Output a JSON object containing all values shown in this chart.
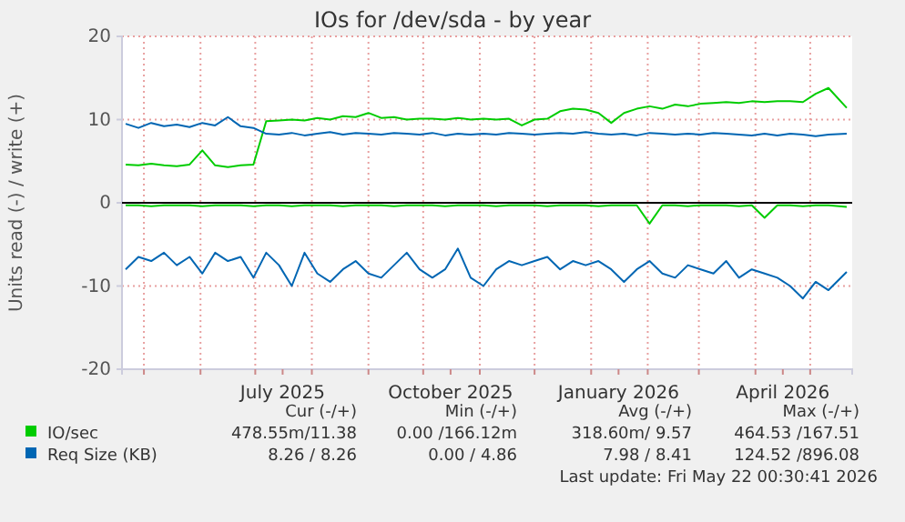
{
  "chart_data": {
    "type": "line",
    "title": "IOs for /dev/sda - by year",
    "ylabel": "Units read (-) / write (+)",
    "x": [
      "2025-04-21",
      "2025-04-28",
      "2025-05-05",
      "2025-05-12",
      "2025-05-19",
      "2025-05-26",
      "2025-06-02",
      "2025-06-09",
      "2025-06-16",
      "2025-06-23",
      "2025-06-30",
      "2025-07-07",
      "2025-07-14",
      "2025-07-21",
      "2025-07-28",
      "2025-08-04",
      "2025-08-11",
      "2025-08-18",
      "2025-08-25",
      "2025-09-01",
      "2025-09-08",
      "2025-09-15",
      "2025-09-22",
      "2025-09-29",
      "2025-10-06",
      "2025-10-13",
      "2025-10-20",
      "2025-10-27",
      "2025-11-03",
      "2025-11-10",
      "2025-11-17",
      "2025-11-24",
      "2025-12-01",
      "2025-12-08",
      "2025-12-15",
      "2025-12-22",
      "2025-12-29",
      "2026-01-05",
      "2026-01-12",
      "2026-01-19",
      "2026-01-26",
      "2026-02-02",
      "2026-02-09",
      "2026-02-16",
      "2026-02-23",
      "2026-03-02",
      "2026-03-09",
      "2026-03-16",
      "2026-03-23",
      "2026-03-30",
      "2026-04-06",
      "2026-04-13",
      "2026-04-20",
      "2026-04-27",
      "2026-05-04",
      "2026-05-11",
      "2026-05-21"
    ],
    "series": [
      {
        "name": "IO/sec",
        "color": "#00cc00",
        "values": [
          4.6,
          4.5,
          4.7,
          4.5,
          4.4,
          4.6,
          6.3,
          4.5,
          4.3,
          4.5,
          4.6,
          9.8,
          9.9,
          10.0,
          9.9,
          10.2,
          10.0,
          10.4,
          10.3,
          10.8,
          10.2,
          10.3,
          10.0,
          10.1,
          10.1,
          10.0,
          10.2,
          10.0,
          10.1,
          10.0,
          10.1,
          9.3,
          10.0,
          10.1,
          11.0,
          11.3,
          11.2,
          10.8,
          9.6,
          10.8,
          11.3,
          11.6,
          11.3,
          11.8,
          11.6,
          11.9,
          12.0,
          12.1,
          12.0,
          12.2,
          12.1,
          12.2,
          12.2,
          12.1,
          13.1,
          13.8,
          11.4
        ]
      },
      {
        "color": "#00cc00",
        "values": [
          -0.3,
          -0.3,
          -0.4,
          -0.3,
          -0.3,
          -0.3,
          -0.4,
          -0.3,
          -0.3,
          -0.3,
          -0.4,
          -0.3,
          -0.3,
          -0.4,
          -0.3,
          -0.3,
          -0.3,
          -0.4,
          -0.3,
          -0.3,
          -0.3,
          -0.4,
          -0.3,
          -0.3,
          -0.3,
          -0.4,
          -0.3,
          -0.3,
          -0.3,
          -0.4,
          -0.3,
          -0.3,
          -0.3,
          -0.4,
          -0.3,
          -0.3,
          -0.3,
          -0.4,
          -0.3,
          -0.3,
          -0.3,
          -2.5,
          -0.3,
          -0.3,
          -0.4,
          -0.3,
          -0.3,
          -0.3,
          -0.4,
          -0.3,
          -1.8,
          -0.3,
          -0.3,
          -0.4,
          -0.3,
          -0.3,
          -0.5
        ]
      },
      {
        "name": "Req Size (KB)",
        "color": "#0066b3",
        "values": [
          9.5,
          9.0,
          9.6,
          9.2,
          9.4,
          9.1,
          9.6,
          9.3,
          10.3,
          9.2,
          9.0,
          8.3,
          8.2,
          8.4,
          8.1,
          8.3,
          8.5,
          8.2,
          8.4,
          8.3,
          8.2,
          8.4,
          8.3,
          8.2,
          8.4,
          8.1,
          8.3,
          8.2,
          8.3,
          8.2,
          8.4,
          8.3,
          8.2,
          8.3,
          8.4,
          8.3,
          8.5,
          8.3,
          8.2,
          8.3,
          8.1,
          8.4,
          8.3,
          8.2,
          8.3,
          8.2,
          8.4,
          8.3,
          8.2,
          8.1,
          8.3,
          8.1,
          8.3,
          8.2,
          8.0,
          8.2,
          8.3
        ]
      },
      {
        "color": "#0066b3",
        "values": [
          -8.0,
          -6.5,
          -7.0,
          -6.0,
          -7.5,
          -6.5,
          -8.5,
          -6.0,
          -7.0,
          -6.5,
          -9.0,
          -6.0,
          -7.5,
          -10.0,
          -6.0,
          -8.5,
          -9.5,
          -8.0,
          -7.0,
          -8.5,
          -9.0,
          -7.5,
          -6.0,
          -8.0,
          -9.0,
          -8.0,
          -5.5,
          -9.0,
          -10.0,
          -8.0,
          -7.0,
          -7.5,
          -7.0,
          -6.5,
          -8.0,
          -7.0,
          -7.5,
          -7.0,
          -8.0,
          -9.5,
          -8.0,
          -7.0,
          -8.5,
          -9.0,
          -7.5,
          -8.0,
          -8.5,
          -7.0,
          -9.0,
          -8.0,
          -8.5,
          -9.0,
          -10.0,
          -11.5,
          -9.5,
          -10.5,
          -8.3
        ]
      }
    ],
    "xlim": [
      "2025-04-19",
      "2026-05-24"
    ],
    "xticks": [
      {
        "value": "2025-05-01",
        "label": null
      },
      {
        "value": "2025-06-01",
        "label": null
      },
      {
        "value": "2025-07-01",
        "label": null
      },
      {
        "value": "2025-07-16",
        "label": "July 2025"
      },
      {
        "value": "2025-08-01",
        "label": null
      },
      {
        "value": "2025-09-01",
        "label": null
      },
      {
        "value": "2025-10-01",
        "label": null
      },
      {
        "value": "2025-10-16",
        "label": "October 2025"
      },
      {
        "value": "2025-11-01",
        "label": null
      },
      {
        "value": "2025-12-01",
        "label": null
      },
      {
        "value": "2026-01-01",
        "label": null
      },
      {
        "value": "2026-01-16",
        "label": "January 2026"
      },
      {
        "value": "2026-02-01",
        "label": null
      },
      {
        "value": "2026-03-01",
        "label": null
      },
      {
        "value": "2026-04-01",
        "label": null
      },
      {
        "value": "2026-04-16",
        "label": "April 2026"
      },
      {
        "value": "2026-05-01",
        "label": null
      }
    ],
    "ylim": [
      -20,
      20
    ],
    "yticks": [
      -20,
      -10,
      0,
      10,
      20
    ],
    "grid": true,
    "legend": "bottom",
    "annotations": [
      "Cur (-/+)",
      "Min (-/+)",
      "Avg (-/+)",
      "Max (-/+)",
      "478.55m/11.38",
      "0.00 /166.12m",
      "318.60m/ 9.57",
      "464.53 /167.51",
      "8.26 / 8.26",
      "0.00 / 4.86",
      "7.98 / 8.41",
      "124.52 /896.08",
      "Last update: Fri May 22 00:30:41 2026"
    ]
  }
}
